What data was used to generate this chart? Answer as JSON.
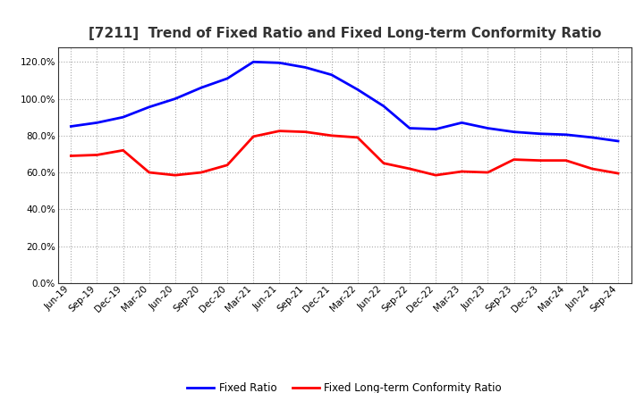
{
  "title": "[7211]  Trend of Fixed Ratio and Fixed Long-term Conformity Ratio",
  "x_labels": [
    "Jun-19",
    "Sep-19",
    "Dec-19",
    "Mar-20",
    "Jun-20",
    "Sep-20",
    "Dec-20",
    "Mar-21",
    "Jun-21",
    "Sep-21",
    "Dec-21",
    "Mar-22",
    "Jun-22",
    "Sep-22",
    "Dec-22",
    "Mar-23",
    "Jun-23",
    "Sep-23",
    "Dec-23",
    "Mar-24",
    "Jun-24",
    "Sep-24"
  ],
  "fixed_ratio": [
    85.0,
    87.0,
    90.0,
    95.5,
    100.0,
    106.0,
    111.0,
    120.0,
    119.5,
    117.0,
    113.0,
    105.0,
    96.0,
    84.0,
    83.5,
    87.0,
    84.0,
    82.0,
    81.0,
    80.5,
    79.0,
    77.0
  ],
  "fixed_lt_ratio": [
    69.0,
    69.5,
    72.0,
    60.0,
    58.5,
    60.0,
    64.0,
    79.5,
    82.5,
    82.0,
    80.0,
    79.0,
    65.0,
    62.0,
    58.5,
    60.5,
    60.0,
    67.0,
    66.5,
    66.5,
    62.0,
    59.5
  ],
  "fixed_ratio_color": "#0000FF",
  "fixed_lt_ratio_color": "#FF0000",
  "ylim": [
    0,
    128
  ],
  "yticks": [
    0,
    20,
    40,
    60,
    80,
    100,
    120
  ],
  "background_color": "#FFFFFF",
  "plot_background_color": "#FFFFFF",
  "grid_color": "#AAAAAA",
  "line_width": 2.0,
  "title_fontsize": 11,
  "tick_fontsize": 7.5,
  "legend_fontsize": 8.5
}
